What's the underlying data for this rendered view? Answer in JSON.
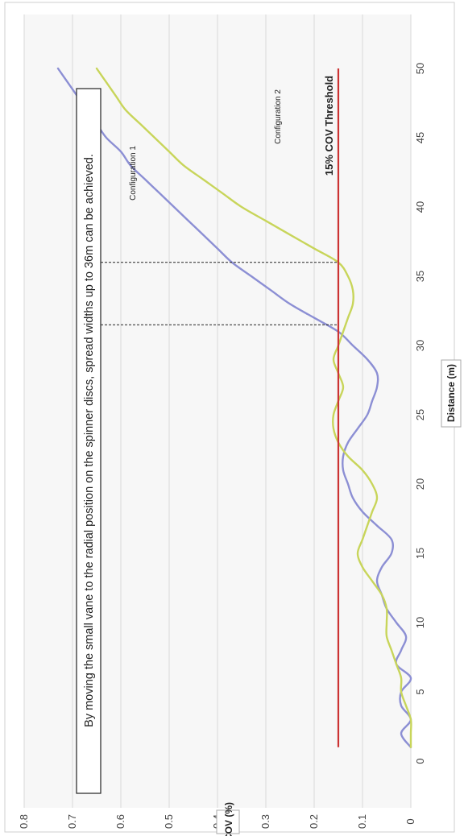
{
  "chart_data": {
    "type": "line",
    "orientation": "rotated-90-clockwise",
    "title": "",
    "xlabel": "Distance (m)",
    "ylabel": "COV (%)",
    "xlim": [
      0,
      50
    ],
    "ylim": [
      0,
      0.8
    ],
    "x_ticks": [
      0,
      5,
      10,
      15,
      20,
      25,
      30,
      35,
      40,
      45,
      50
    ],
    "y_ticks": [
      0,
      0.1,
      0.2,
      0.3,
      0.4,
      0.5,
      0.6,
      0.7,
      0.8
    ],
    "y_tick_labels": [
      "0",
      "0.1",
      "0.2",
      "0.3",
      "0.4",
      "0.5",
      "0.6",
      "0.7",
      "0.8"
    ],
    "grid": true,
    "colors": {
      "configuration_1": "#8c8fd4",
      "configuration_2": "#c8d55a",
      "threshold": "#cc3333",
      "plot_bg": "#f7f7f7",
      "grid": "#d8d8d8"
    },
    "series": [
      {
        "name": "Configuration 1",
        "x": [
          1,
          2,
          3,
          4,
          5,
          6,
          7,
          8,
          9,
          10,
          11,
          12,
          13,
          14,
          15,
          16,
          17,
          18,
          19,
          20,
          21,
          22,
          23,
          24,
          25,
          26,
          27,
          28,
          29,
          30,
          31,
          32,
          33,
          34,
          35,
          36,
          37,
          38,
          39,
          40,
          41,
          42,
          43,
          44,
          45,
          46,
          47,
          48,
          49,
          50
        ],
        "values": [
          0.0,
          0.02,
          0.0,
          0.02,
          0.02,
          0.0,
          0.03,
          0.02,
          0.01,
          0.03,
          0.05,
          0.06,
          0.07,
          0.06,
          0.04,
          0.04,
          0.07,
          0.1,
          0.12,
          0.13,
          0.14,
          0.14,
          0.13,
          0.11,
          0.09,
          0.08,
          0.07,
          0.07,
          0.09,
          0.12,
          0.15,
          0.2,
          0.25,
          0.29,
          0.33,
          0.37,
          0.4,
          0.43,
          0.46,
          0.49,
          0.52,
          0.55,
          0.58,
          0.6,
          0.63,
          0.65,
          0.67,
          0.69,
          0.71,
          0.73
        ]
      },
      {
        "name": "Configuration 2",
        "x": [
          1,
          2,
          3,
          4,
          5,
          6,
          7,
          8,
          9,
          10,
          11,
          12,
          13,
          14,
          15,
          16,
          17,
          18,
          19,
          20,
          21,
          22,
          23,
          24,
          25,
          26,
          27,
          28,
          29,
          30,
          31,
          32,
          33,
          34,
          35,
          36,
          37,
          38,
          39,
          40,
          41,
          42,
          43,
          44,
          45,
          46,
          47,
          48,
          49,
          50
        ],
        "values": [
          0.0,
          0.0,
          0.0,
          0.01,
          0.02,
          0.02,
          0.03,
          0.04,
          0.05,
          0.05,
          0.05,
          0.06,
          0.08,
          0.1,
          0.11,
          0.1,
          0.09,
          0.08,
          0.07,
          0.08,
          0.1,
          0.13,
          0.15,
          0.16,
          0.16,
          0.15,
          0.14,
          0.15,
          0.16,
          0.15,
          0.14,
          0.13,
          0.12,
          0.12,
          0.13,
          0.15,
          0.2,
          0.25,
          0.3,
          0.35,
          0.39,
          0.43,
          0.47,
          0.5,
          0.53,
          0.56,
          0.59,
          0.61,
          0.63,
          0.65
        ]
      }
    ],
    "threshold": {
      "value": 0.15,
      "label": "15% COV Threshold"
    },
    "markers": [
      31.5,
      36
    ],
    "annotations": {
      "callout": "By moving the small vane to the radial position on the spinner discs, spread widths up to 36m can be achieved.",
      "series_1_label": "Configuration 1",
      "series_2_label": "Configuration 2"
    }
  }
}
